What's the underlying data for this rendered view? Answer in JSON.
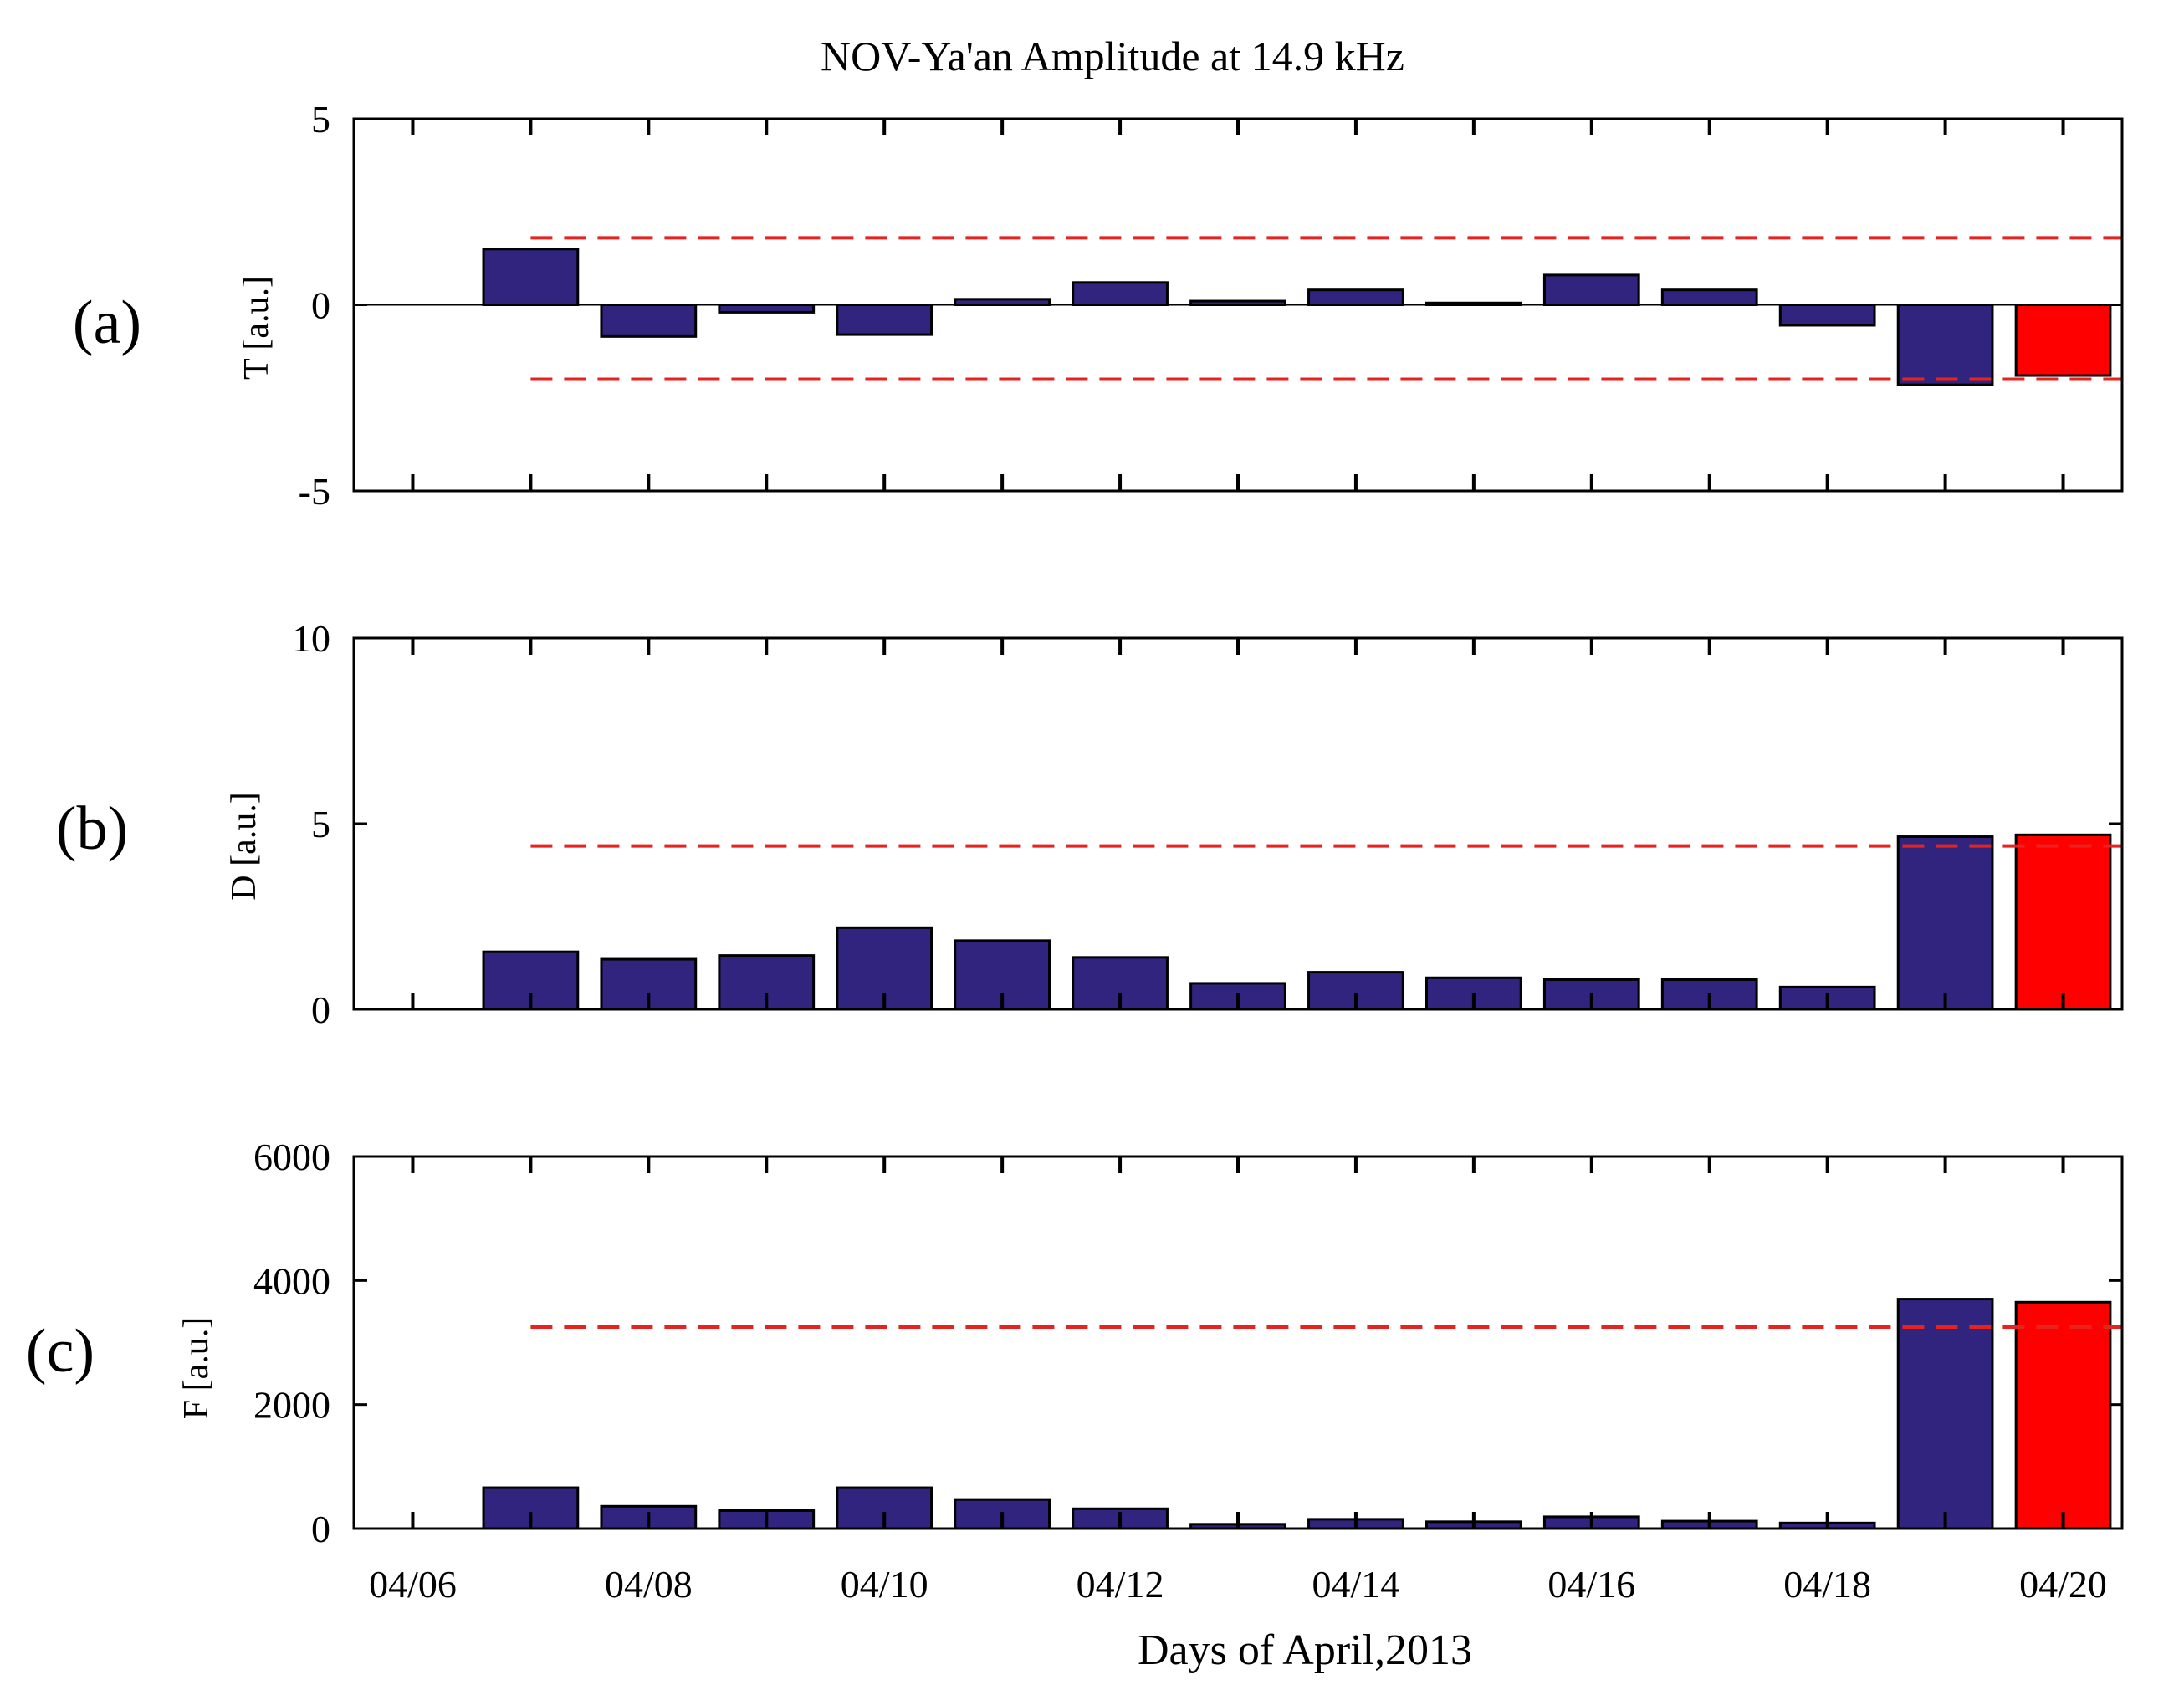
{
  "figure_title": "NOV-Ya'an Amplitude at 14.9 kHz",
  "xlabel": "Days of April,2013",
  "x_tick_labels": [
    "04/06",
    "04/08",
    "04/10",
    "04/12",
    "04/14",
    "04/16",
    "04/18",
    "04/20"
  ],
  "colors": {
    "normal_bar": "#30247f",
    "anomaly_bar": "#ff0000",
    "threshold": "#e8231f"
  },
  "chart_data": [
    {
      "type": "bar",
      "panel_label": "(a)",
      "ylabel": "T [a.u.]",
      "ylim": [
        -5,
        5
      ],
      "y_ticks": [
        -5,
        0,
        5
      ],
      "y_tick_labels": [
        "-5",
        "0",
        "5"
      ],
      "xlim": [
        5.5,
        20.5
      ],
      "x_ticks": [
        6,
        7,
        8,
        9,
        10,
        11,
        12,
        13,
        14,
        15,
        16,
        17,
        18,
        19,
        20
      ],
      "categories": [
        "04/07",
        "04/08",
        "04/09",
        "04/10",
        "04/11",
        "04/12",
        "04/13",
        "04/14",
        "04/15",
        "04/16",
        "04/17",
        "04/18",
        "04/19",
        "04/20"
      ],
      "days": [
        7,
        8,
        9,
        10,
        11,
        12,
        13,
        14,
        15,
        16,
        17,
        18,
        19,
        20
      ],
      "values": [
        1.5,
        -0.85,
        -0.2,
        -0.8,
        0.15,
        0.6,
        0.1,
        0.4,
        0.05,
        0.8,
        0.4,
        -0.55,
        -2.15,
        -1.9
      ],
      "highlight_index": 13,
      "baseline": 0,
      "thresholds": [
        1.8,
        -2.0
      ],
      "threshold_start_day": 7
    },
    {
      "type": "bar",
      "panel_label": "(b)",
      "ylabel": "D [a.u.]",
      "ylim": [
        0,
        10
      ],
      "y_ticks": [
        0,
        5,
        10
      ],
      "y_tick_labels": [
        "0",
        "5",
        "10"
      ],
      "xlim": [
        5.5,
        20.5
      ],
      "x_ticks": [
        6,
        7,
        8,
        9,
        10,
        11,
        12,
        13,
        14,
        15,
        16,
        17,
        18,
        19,
        20
      ],
      "categories": [
        "04/07",
        "04/08",
        "04/09",
        "04/10",
        "04/11",
        "04/12",
        "04/13",
        "04/14",
        "04/15",
        "04/16",
        "04/17",
        "04/18",
        "04/19",
        "04/20"
      ],
      "days": [
        7,
        8,
        9,
        10,
        11,
        12,
        13,
        14,
        15,
        16,
        17,
        18,
        19,
        20
      ],
      "values": [
        1.55,
        1.35,
        1.45,
        2.2,
        1.85,
        1.4,
        0.7,
        1.0,
        0.85,
        0.8,
        0.8,
        0.6,
        4.65,
        4.7
      ],
      "highlight_index": 13,
      "baseline": 0,
      "thresholds": [
        4.4
      ],
      "threshold_start_day": 7
    },
    {
      "type": "bar",
      "panel_label": "(c)",
      "ylabel": "F [a.u.]",
      "ylim": [
        0,
        6000
      ],
      "y_ticks": [
        0,
        2000,
        4000,
        6000
      ],
      "y_tick_labels": [
        "0",
        "2000",
        "4000",
        "6000"
      ],
      "xlim": [
        5.5,
        20.5
      ],
      "x_ticks": [
        6,
        7,
        8,
        9,
        10,
        11,
        12,
        13,
        14,
        15,
        16,
        17,
        18,
        19,
        20
      ],
      "categories": [
        "04/07",
        "04/08",
        "04/09",
        "04/10",
        "04/11",
        "04/12",
        "04/13",
        "04/14",
        "04/15",
        "04/16",
        "04/17",
        "04/18",
        "04/19",
        "04/20"
      ],
      "days": [
        7,
        8,
        9,
        10,
        11,
        12,
        13,
        14,
        15,
        16,
        17,
        18,
        19,
        20
      ],
      "values": [
        660,
        360,
        290,
        660,
        470,
        320,
        70,
        150,
        110,
        190,
        120,
        90,
        3700,
        3650
      ],
      "highlight_index": 13,
      "baseline": 0,
      "thresholds": [
        3250
      ],
      "threshold_start_day": 7
    }
  ]
}
